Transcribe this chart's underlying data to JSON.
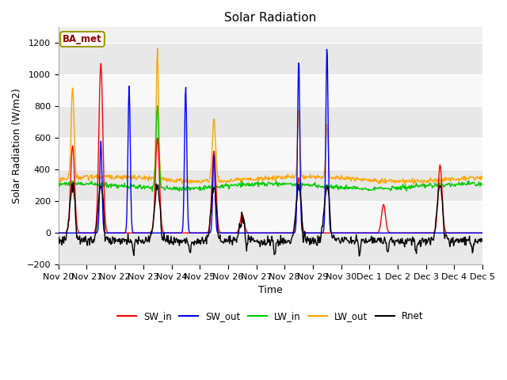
{
  "title": "Solar Radiation",
  "ylabel": "Solar Radiation (W/m2)",
  "xlabel": "Time",
  "ylim": [
    -200,
    1300
  ],
  "yticks": [
    -200,
    0,
    200,
    400,
    600,
    800,
    1000,
    1200
  ],
  "legend_label": "BA_met",
  "series_labels": [
    "SW_in",
    "SW_out",
    "LW_in",
    "LW_out",
    "Rnet"
  ],
  "series_colors": [
    "#ff0000",
    "#0000ff",
    "#00cc00",
    "#ffa500",
    "#000000"
  ],
  "bg_color": "#ffffff",
  "plot_bg_color": "#f0f0f0",
  "band_colors": [
    "#e8e8e8",
    "#f8f8f8"
  ],
  "grid_color": "#ffffff",
  "x_tick_labels": [
    "Nov 20",
    "Nov 21",
    "Nov 22",
    "Nov 23",
    "Nov 24",
    "Nov 25",
    "Nov 26",
    "Nov 27",
    "Nov 28",
    "Nov 29",
    "Nov 30",
    "Dec 1",
    "Dec 2",
    "Dec 3",
    "Dec 4",
    "Dec 5"
  ],
  "n_days": 15,
  "pts_per_day": 48,
  "title_fontsize": 11,
  "axis_fontsize": 9,
  "tick_fontsize": 8
}
